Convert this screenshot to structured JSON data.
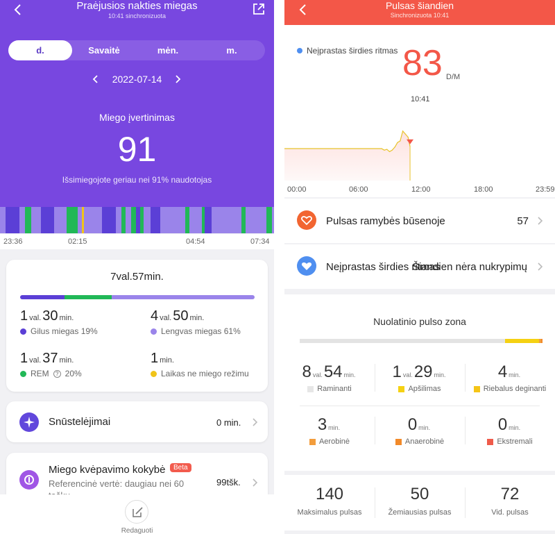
{
  "left": {
    "header": {
      "title": "Praėjusios nakties miegas",
      "subtitle": "10:41 sinchronizuota"
    },
    "period_tabs": [
      "d.",
      "Savaitė",
      "mėn.",
      "m."
    ],
    "date": "2022-07-14",
    "score": {
      "title": "Miego įvertinimas",
      "value": "91",
      "note": "Išsimiegojote geriau nei 91% naudotojas"
    },
    "timeline_labels": [
      "23:36",
      "02:15",
      "04:54",
      "07:34"
    ],
    "summary": {
      "total": "7val.57min.",
      "deep": {
        "h": "1",
        "hu": "val.",
        "m": "30",
        "mu": "min.",
        "label": "Gilus miegas 19%"
      },
      "light": {
        "h": "4",
        "hu": "val.",
        "m": "50",
        "mu": "min.",
        "label": "Lengvas miegas 61%"
      },
      "rem": {
        "h": "1",
        "hu": "val.",
        "m": "37",
        "mu": "min.",
        "label": "REM",
        "help": "?",
        "percent": "20%"
      },
      "awake": {
        "m": "1",
        "mu": "min.",
        "label": "Laikas ne miego režimu"
      }
    },
    "naps": {
      "title": "Snūstelėjimai",
      "value": "0 min."
    },
    "breathing": {
      "title": "Miego kvėpavimo kokybė",
      "badge": "Beta",
      "subtitle": "Referencinė vertė: daugiau nei 60",
      "subtitle2": "taškų",
      "value": "99tšk."
    },
    "edit_label": "Redaguoti"
  },
  "right": {
    "header": {
      "title": "Pulsas šiandien",
      "subtitle": "Sinchronizuota 10:41"
    },
    "legend": "Neįprastas širdies ritmas",
    "current_hr": "83",
    "hr_unit": "D/M",
    "hr_time": "10:41",
    "time_labels": [
      "00:00",
      "06:00",
      "12:00",
      "18:00",
      "23:59"
    ],
    "resting": {
      "title": "Pulsas ramybės būsenoje",
      "value": "57"
    },
    "abnormal": {
      "title": "Neįprastas širdies ritmas",
      "value": "Šiandien nėra nukrypimų"
    },
    "zone": {
      "title": "Nuolatinio pulso zona",
      "cells": [
        {
          "h": "8",
          "hu": "val.",
          "m": "54",
          "mu": "min.",
          "label": "Raminanti"
        },
        {
          "h": "1",
          "hu": "val.",
          "m": "29",
          "mu": "min.",
          "label": "Apšilimas"
        },
        {
          "m": "4",
          "mu": "min.",
          "label": "Riebalus deginanti"
        },
        {
          "m": "3",
          "mu": "min.",
          "label": "Aerobinė"
        },
        {
          "m": "0",
          "mu": "min.",
          "label": "Anaerobinė"
        },
        {
          "m": "0",
          "mu": "min.",
          "label": "Ekstremali"
        }
      ]
    },
    "summary": [
      {
        "value": "140",
        "label": "Maksimalus pulsas"
      },
      {
        "value": "50",
        "label": "Žemiausias pulsas"
      },
      {
        "value": "72",
        "label": "Vid. pulsas"
      }
    ]
  },
  "colors": {
    "purple": "#7847e0",
    "deep": "#5b3fd6",
    "light": "#9a84ea",
    "rem": "#21b857",
    "awake": "#f0c419",
    "hr_red": "#f35748",
    "resting_icon": "#f26531",
    "abnormal_icon": "#4f8ff0",
    "zone_relax": "#dedede",
    "zone_warm": "#f5d113",
    "zone_fat": "#f5c517",
    "zone_aero": "#f39d3c",
    "zone_anaero": "#f28a2a",
    "zone_extreme": "#ef5b4a"
  },
  "chart_data": {
    "type": "line",
    "x": [
      "08:00",
      "08:15",
      "08:30",
      "08:45",
      "09:00",
      "09:15",
      "09:30",
      "09:45",
      "10:00",
      "10:15",
      "10:30",
      "10:41"
    ],
    "values": [
      80,
      78,
      79,
      76,
      78,
      82,
      88,
      90,
      103,
      99,
      95,
      83
    ],
    "ylim": [
      40,
      120
    ],
    "x_range": [
      "00:00",
      "23:59"
    ],
    "xlabel": "",
    "ylabel": ""
  }
}
